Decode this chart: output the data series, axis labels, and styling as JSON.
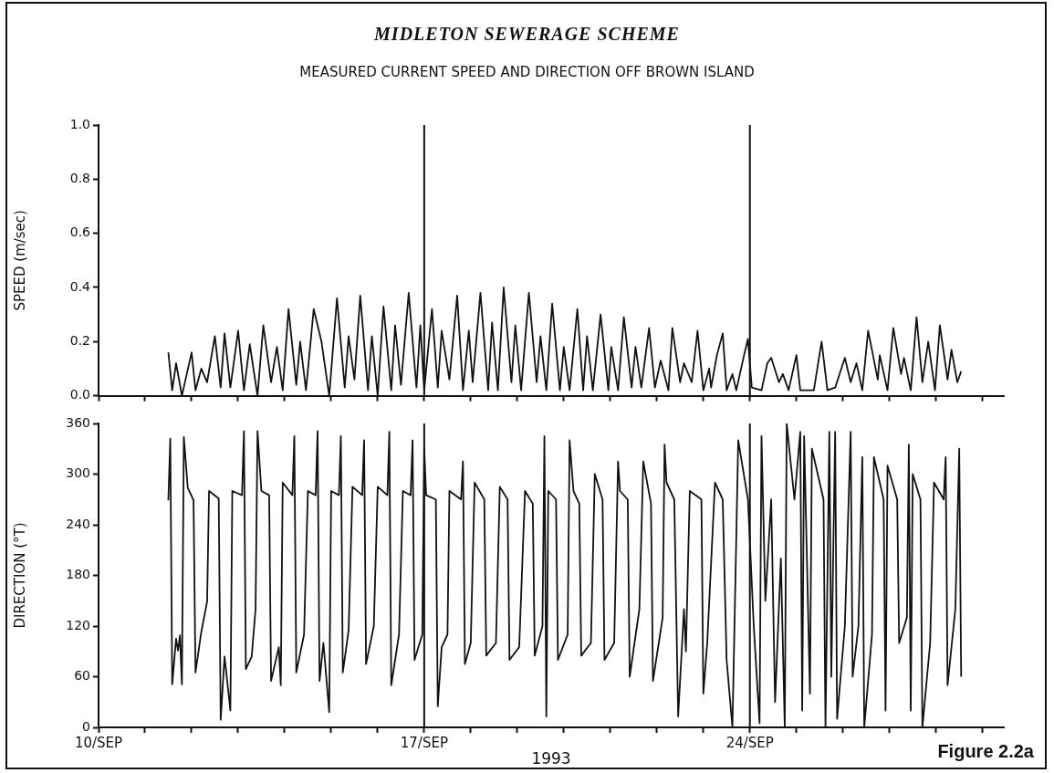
{
  "chart_data": [
    {
      "type": "line",
      "title": "MIDLETON SEWERAGE SCHEME",
      "subtitle": "MEASURED CURRENT SPEED AND DIRECTION OFF BROWN ISLAND",
      "ylabel": "SPEED (m/sec)",
      "color": "#111111",
      "marker": "none",
      "legend": false,
      "tick_labels": "y",
      "x": [
        "1993-09-11T12:00",
        "1993-09-11T14:00",
        "1993-09-11T16:00",
        "1993-09-11T19:00",
        "1993-09-12T00:00",
        "1993-09-12T02:00",
        "1993-09-12T05:00",
        "1993-09-12T08:00",
        "1993-09-12T12:00",
        "1993-09-12T15:00",
        "1993-09-12T17:00",
        "1993-09-12T20:00",
        "1993-09-13T00:00",
        "1993-09-13T03:00",
        "1993-09-13T06:00",
        "1993-09-13T10:00",
        "1993-09-13T13:00",
        "1993-09-13T17:00",
        "1993-09-13T20:00",
        "1993-09-13T23:00",
        "1993-09-14T02:00",
        "1993-09-14T06:00",
        "1993-09-14T08:00",
        "1993-09-14T11:00",
        "1993-09-14T15:00",
        "1993-09-14T19:00",
        "1993-09-14T23:00",
        "1993-09-15T03:00",
        "1993-09-15T07:00",
        "1993-09-15T09:00",
        "1993-09-15T12:00",
        "1993-09-15T15:00",
        "1993-09-15T19:00",
        "1993-09-15T21:00",
        "1993-09-16T00:00",
        "1993-09-16T03:00",
        "1993-09-16T07:00",
        "1993-09-16T09:00",
        "1993-09-16T12:00",
        "1993-09-16T16:00",
        "1993-09-16T20:00",
        "1993-09-16T22:00",
        "1993-09-17T00:00",
        "1993-09-17T04:00",
        "1993-09-17T07:00",
        "1993-09-17T09:00",
        "1993-09-17T13:00",
        "1993-09-17T17:00",
        "1993-09-17T20:00",
        "1993-09-17T23:00",
        "1993-09-18T01:00",
        "1993-09-18T05:00",
        "1993-09-18T09:00",
        "1993-09-18T11:00",
        "1993-09-18T14:00",
        "1993-09-18T17:00",
        "1993-09-18T21:00",
        "1993-09-18T23:00",
        "1993-09-19T02:00",
        "1993-09-19T06:00",
        "1993-09-19T10:00",
        "1993-09-19T12:00",
        "1993-09-19T15:00",
        "1993-09-19T18:00",
        "1993-09-19T22:00",
        "1993-09-20T00:00",
        "1993-09-20T03:00",
        "1993-09-20T07:00",
        "1993-09-20T10:00",
        "1993-09-20T12:00",
        "1993-09-20T15:00",
        "1993-09-20T19:00",
        "1993-09-20T23:00",
        "1993-09-21T00:30",
        "1993-09-21T04:00",
        "1993-09-21T07:00",
        "1993-09-21T11:00",
        "1993-09-21T13:00",
        "1993-09-21T16:00",
        "1993-09-21T20:00",
        "1993-09-21T23:00",
        "1993-09-22T02:00",
        "1993-09-22T06:00",
        "1993-09-22T08:00",
        "1993-09-22T12:00",
        "1993-09-22T14:00",
        "1993-09-22T18:00",
        "1993-09-22T21:00",
        "1993-09-23T00:00",
        "1993-09-23T03:00",
        "1993-09-23T04:00",
        "1993-09-23T07:00",
        "1993-09-23T10:00",
        "1993-09-23T12:00",
        "1993-09-23T15:00",
        "1993-09-23T17:00",
        "1993-09-23T21:00",
        "1993-09-23T23:00",
        "1993-09-24T01:00",
        "1993-09-24T06:00",
        "1993-09-24T09:00",
        "1993-09-24T11:00",
        "1993-09-24T15:00",
        "1993-09-24T17:00",
        "1993-09-24T20:00",
        "1993-09-25T00:00",
        "1993-09-25T02:00",
        "1993-09-25T09:00",
        "1993-09-25T13:00",
        "1993-09-25T16:00",
        "1993-09-25T20:00",
        "1993-09-26T01:00",
        "1993-09-26T04:00",
        "1993-09-26T07:00",
        "1993-09-26T10:00",
        "1993-09-26T13:00",
        "1993-09-26T18:00",
        "1993-09-26T19:00",
        "1993-09-26T23:00",
        "1993-09-27T02:00",
        "1993-09-27T06:00",
        "1993-09-27T07:30",
        "1993-09-27T11:00",
        "1993-09-27T14:00",
        "1993-09-27T17:00",
        "1993-09-27T20:00",
        "1993-09-27T23:30",
        "1993-09-28T02:00",
        "1993-09-28T06:00",
        "1993-09-28T08:00",
        "1993-09-28T11:00",
        "1993-09-28T13:00"
      ],
      "values": [
        0.16,
        0.02,
        0.12,
        0.0,
        0.16,
        0.02,
        0.1,
        0.05,
        0.22,
        0.03,
        0.23,
        0.03,
        0.24,
        0.02,
        0.19,
        0.0,
        0.26,
        0.05,
        0.18,
        0.02,
        0.32,
        0.04,
        0.2,
        0.02,
        0.32,
        0.2,
        0.0,
        0.36,
        0.03,
        0.22,
        0.06,
        0.37,
        0.02,
        0.22,
        0.0,
        0.33,
        0.02,
        0.26,
        0.04,
        0.38,
        0.03,
        0.26,
        0.02,
        0.32,
        0.03,
        0.24,
        0.06,
        0.37,
        0.02,
        0.24,
        0.05,
        0.38,
        0.02,
        0.27,
        0.02,
        0.4,
        0.05,
        0.26,
        0.02,
        0.38,
        0.05,
        0.22,
        0.02,
        0.34,
        0.02,
        0.18,
        0.02,
        0.32,
        0.02,
        0.22,
        0.02,
        0.3,
        0.02,
        0.18,
        0.02,
        0.29,
        0.03,
        0.18,
        0.03,
        0.25,
        0.03,
        0.13,
        0.02,
        0.25,
        0.05,
        0.12,
        0.05,
        0.24,
        0.02,
        0.1,
        0.03,
        0.15,
        0.23,
        0.02,
        0.08,
        0.02,
        0.15,
        0.21,
        0.03,
        0.02,
        0.12,
        0.14,
        0.05,
        0.08,
        0.02,
        0.15,
        0.02,
        0.02,
        0.2,
        0.02,
        0.03,
        0.14,
        0.05,
        0.12,
        0.02,
        0.24,
        0.06,
        0.15,
        0.02,
        0.25,
        0.08,
        0.14,
        0.02,
        0.29,
        0.05,
        0.2,
        0.02,
        0.26,
        0.06,
        0.17,
        0.05,
        0.09
      ],
      "xlim": [
        "1993-09-10",
        "1993-09-29T11:00"
      ],
      "xticks": [
        {
          "value": "1993-09-10",
          "label": null
        },
        {
          "value": "1993-09-11",
          "label": null
        },
        {
          "value": "1993-09-12",
          "label": null
        },
        {
          "value": "1993-09-13",
          "label": null
        },
        {
          "value": "1993-09-14",
          "label": null
        },
        {
          "value": "1993-09-15",
          "label": null
        },
        {
          "value": "1993-09-16",
          "label": null
        },
        {
          "value": "1993-09-17",
          "label": null
        },
        {
          "value": "1993-09-18",
          "label": null
        },
        {
          "value": "1993-09-19",
          "label": null
        },
        {
          "value": "1993-09-20",
          "label": null
        },
        {
          "value": "1993-09-21",
          "label": null
        },
        {
          "value": "1993-09-22",
          "label": null
        },
        {
          "value": "1993-09-23",
          "label": null
        },
        {
          "value": "1993-09-24",
          "label": null
        },
        {
          "value": "1993-09-25",
          "label": null
        },
        {
          "value": "1993-09-26",
          "label": null
        },
        {
          "value": "1993-09-27",
          "label": null
        },
        {
          "value": "1993-09-28",
          "label": null
        },
        {
          "value": "1993-09-29",
          "label": null
        }
      ],
      "ylim": [
        0,
        1
      ],
      "yticks": [
        {
          "value": 0,
          "label": "0.0"
        },
        {
          "value": 0.2,
          "label": "0.2"
        },
        {
          "value": 0.4,
          "label": "0.4"
        },
        {
          "value": 0.6,
          "label": "0.6"
        },
        {
          "value": 0.8,
          "label": "0.8"
        },
        {
          "value": 1,
          "label": "1.0"
        }
      ],
      "ref_lines": [
        {
          "axis": "x",
          "value": "1993-09-17",
          "color": "#111111"
        },
        {
          "axis": "x",
          "value": "1993-09-24",
          "color": "#111111"
        }
      ]
    },
    {
      "type": "line",
      "xlabel": "1993",
      "ylabel": "DIRECTION (°T)",
      "color": "#111111",
      "marker": "none",
      "legend": false,
      "annotations": [
        "Figure 2.2a"
      ],
      "x": [
        "1993-09-11T12:00",
        "1993-09-11T13:00",
        "1993-09-11T14:00",
        "1993-09-11T16:00",
        "1993-09-11T17:00",
        "1993-09-11T18:00",
        "1993-09-11T19:00",
        "1993-09-11T20:00",
        "1993-09-11T22:00",
        "1993-09-12T01:00",
        "1993-09-12T02:00",
        "1993-09-12T05:00",
        "1993-09-12T08:00",
        "1993-09-12T09:00",
        "1993-09-12T14:00",
        "1993-09-12T15:00",
        "1993-09-12T17:00",
        "1993-09-12T20:00",
        "1993-09-12T21:00",
        "1993-09-13T02:00",
        "1993-09-13T03:00",
        "1993-09-13T04:00",
        "1993-09-13T07:00",
        "1993-09-13T09:00",
        "1993-09-13T10:00",
        "1993-09-13T12:00",
        "1993-09-13T16:00",
        "1993-09-13T17:00",
        "1993-09-13T21:00",
        "1993-09-13T22:00",
        "1993-09-13T23:00",
        "1993-09-14T04:00",
        "1993-09-14T05:00",
        "1993-09-14T06:00",
        "1993-09-14T10:00",
        "1993-09-14T12:00",
        "1993-09-14T16:00",
        "1993-09-14T17:00",
        "1993-09-14T18:00",
        "1993-09-14T20:00",
        "1993-09-14T23:00",
        "1993-09-15T00:00",
        "1993-09-15T04:00",
        "1993-09-15T05:00",
        "1993-09-15T06:00",
        "1993-09-15T09:00",
        "1993-09-15T11:00",
        "1993-09-15T16:00",
        "1993-09-15T17:00",
        "1993-09-15T18:00",
        "1993-09-15T22:00",
        "1993-09-16T00:00",
        "1993-09-16T05:00",
        "1993-09-16T06:00",
        "1993-09-16T07:00",
        "1993-09-16T11:00",
        "1993-09-16T13:00",
        "1993-09-16T17:00",
        "1993-09-16T18:00",
        "1993-09-16T19:00",
        "1993-09-16T23:00",
        "1993-09-17T00:00",
        "1993-09-17T01:00",
        "1993-09-17T06:00",
        "1993-09-17T07:00",
        "1993-09-17T09:00",
        "1993-09-17T12:00",
        "1993-09-17T13:00",
        "1993-09-17T19:00",
        "1993-09-17T20:00",
        "1993-09-17T21:00",
        "1993-09-18T00:00",
        "1993-09-18T02:00",
        "1993-09-18T07:00",
        "1993-09-18T08:00",
        "1993-09-18T13:00",
        "1993-09-18T15:00",
        "1993-09-18T19:00",
        "1993-09-18T20:00",
        "1993-09-19T01:00",
        "1993-09-19T04:00",
        "1993-09-19T08:00",
        "1993-09-19T09:00",
        "1993-09-19T13:00",
        "1993-09-19T14:00",
        "1993-09-19T15:00",
        "1993-09-19T16:00",
        "1993-09-19T20:00",
        "1993-09-19T21:00",
        "1993-09-20T02:00",
        "1993-09-20T03:00",
        "1993-09-20T05:00",
        "1993-09-20T08:00",
        "1993-09-20T09:00",
        "1993-09-20T14:00",
        "1993-09-20T16:00",
        "1993-09-20T20:00",
        "1993-09-20T21:00",
        "1993-09-21T02:00",
        "1993-09-21T04:00",
        "1993-09-21T05:00",
        "1993-09-21T09:00",
        "1993-09-21T10:00",
        "1993-09-21T15:00",
        "1993-09-21T17:00",
        "1993-09-21T21:00",
        "1993-09-21T22:00",
        "1993-09-22T03:00",
        "1993-09-22T04:00",
        "1993-09-22T05:00",
        "1993-09-22T09:00",
        "1993-09-22T11:00",
        "1993-09-22T14:00",
        "1993-09-22T15:00",
        "1993-09-22T17:00",
        "1993-09-22T23:00",
        "1993-09-23T00:00",
        "1993-09-23T02:00",
        "1993-09-23T06:00",
        "1993-09-23T10:00",
        "1993-09-23T12:00",
        "1993-09-23T15:00",
        "1993-09-23T18:00",
        "1993-09-23T23:00",
        "1993-09-24T02:00",
        "1993-09-24T05:00",
        "1993-09-24T06:00",
        "1993-09-24T08:00",
        "1993-09-24T11:00",
        "1993-09-24T13:00",
        "1993-09-24T16:00",
        "1993-09-24T18:00",
        "1993-09-24T19:00",
        "1993-09-24T23:00",
        "1993-09-25T02:00",
        "1993-09-25T03:00",
        "1993-09-25T04:00",
        "1993-09-25T07:00",
        "1993-09-25T08:00",
        "1993-09-25T14:00",
        "1993-09-25T15:00",
        "1993-09-25T17:00",
        "1993-09-25T18:00",
        "1993-09-25T20:00",
        "1993-09-25T21:00",
        "1993-09-26T01:00",
        "1993-09-26T04:00",
        "1993-09-26T05:00",
        "1993-09-26T08:00",
        "1993-09-26T10:00",
        "1993-09-26T11:00",
        "1993-09-26T15:00",
        "1993-09-26T16:00",
        "1993-09-26T21:00",
        "1993-09-26T22:00",
        "1993-09-26T23:00",
        "1993-09-27T04:00",
        "1993-09-27T05:00",
        "1993-09-27T09:00",
        "1993-09-27T10:00",
        "1993-09-27T11:00",
        "1993-09-27T12:00",
        "1993-09-27T16:00",
        "1993-09-27T17:00",
        "1993-09-27T21:00",
        "1993-09-27T23:00",
        "1993-09-28T04:00",
        "1993-09-28T05:00",
        "1993-09-28T06:00",
        "1993-09-28T10:00",
        "1993-09-28T12:00",
        "1993-09-28T13:00"
      ],
      "values": [
        269,
        342,
        51,
        105,
        91,
        109,
        51,
        344,
        284,
        269,
        65,
        113,
        149,
        280,
        271,
        9,
        84,
        20,
        280,
        275,
        351,
        69,
        84,
        140,
        351,
        280,
        275,
        55,
        95,
        50,
        290,
        275,
        345,
        65,
        110,
        280,
        275,
        351,
        55,
        100,
        18,
        280,
        275,
        345,
        65,
        115,
        285,
        275,
        340,
        75,
        120,
        285,
        275,
        350,
        50,
        110,
        280,
        275,
        340,
        80,
        110,
        330,
        275,
        270,
        25,
        95,
        110,
        280,
        270,
        315,
        75,
        100,
        290,
        270,
        85,
        100,
        285,
        270,
        80,
        95,
        280,
        265,
        85,
        120,
        345,
        13,
        280,
        270,
        80,
        110,
        340,
        280,
        265,
        85,
        100,
        300,
        270,
        80,
        100,
        315,
        280,
        270,
        60,
        140,
        315,
        265,
        55,
        130,
        335,
        290,
        270,
        13,
        140,
        90,
        280,
        270,
        40,
        100,
        290,
        270,
        80,
        0,
        340,
        270,
        120,
        5,
        345,
        150,
        270,
        30,
        200,
        0,
        360,
        270,
        350,
        20,
        345,
        40,
        330,
        270,
        0,
        350,
        60,
        350,
        10,
        120,
        350,
        60,
        120,
        320,
        0,
        110,
        320,
        270,
        20,
        310,
        270,
        100,
        130,
        335,
        20,
        300,
        270,
        0,
        100,
        290,
        270,
        320,
        50,
        140,
        330,
        60
      ],
      "xlim": [
        "1993-09-10",
        "1993-09-29T11:00"
      ],
      "xticks": [
        {
          "value": "1993-09-10",
          "label": "10/SEP"
        },
        {
          "value": "1993-09-11",
          "label": null
        },
        {
          "value": "1993-09-12",
          "label": null
        },
        {
          "value": "1993-09-13",
          "label": null
        },
        {
          "value": "1993-09-14",
          "label": null
        },
        {
          "value": "1993-09-15",
          "label": null
        },
        {
          "value": "1993-09-16",
          "label": null
        },
        {
          "value": "1993-09-17",
          "label": "17/SEP"
        },
        {
          "value": "1993-09-18",
          "label": null
        },
        {
          "value": "1993-09-19",
          "label": null
        },
        {
          "value": "1993-09-20",
          "label": null
        },
        {
          "value": "1993-09-21",
          "label": null
        },
        {
          "value": "1993-09-22",
          "label": null
        },
        {
          "value": "1993-09-23",
          "label": null
        },
        {
          "value": "1993-09-24",
          "label": "24/SEP"
        },
        {
          "value": "1993-09-25",
          "label": null
        },
        {
          "value": "1993-09-26",
          "label": null
        },
        {
          "value": "1993-09-27",
          "label": null
        },
        {
          "value": "1993-09-28",
          "label": null
        },
        {
          "value": "1993-09-29",
          "label": null
        }
      ],
      "ylim": [
        0,
        360
      ],
      "yticks": [
        0,
        60,
        120,
        180,
        240,
        300,
        360
      ],
      "ref_lines": [
        {
          "axis": "x",
          "value": "1993-09-17",
          "color": "#111111"
        },
        {
          "axis": "x",
          "value": "1993-09-24",
          "color": "#111111"
        }
      ]
    }
  ]
}
